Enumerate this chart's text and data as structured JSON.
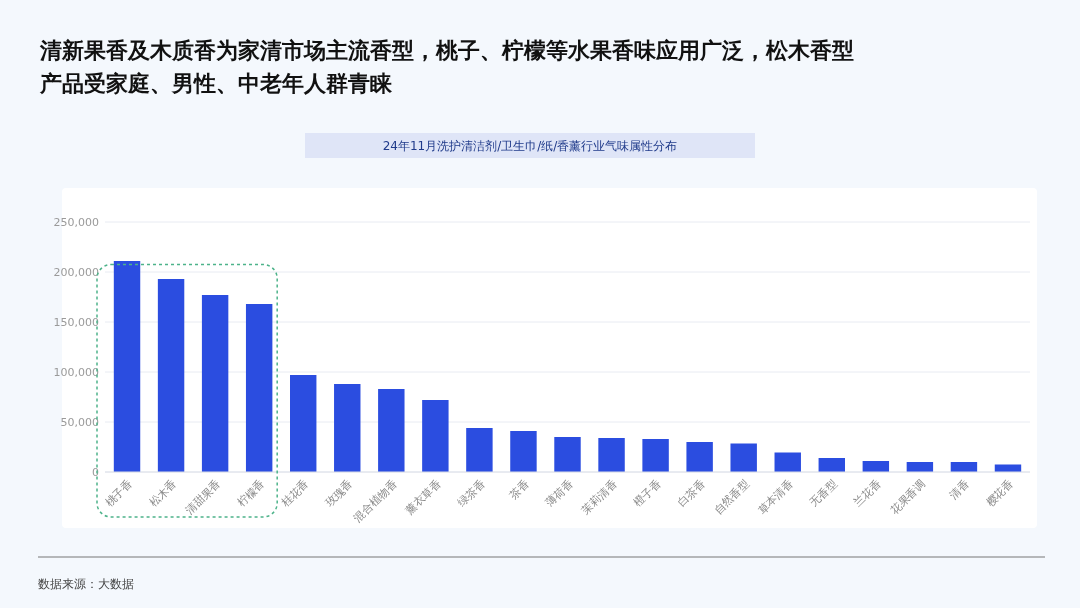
{
  "chart_data": {
    "type": "bar",
    "title": "清新果香及木质香为家清市场主流香型，桃子、柠檬等水果香味应用广泛，松木香型产品受家庭、男性、中老年人群青睐",
    "subtitle": "24年11月洗护清洁剂/卫生巾/纸/香薰行业气味属性分布",
    "categories": [
      "桃子香",
      "松木香",
      "清甜果香",
      "柠檬香",
      "桂花香",
      "玫瑰香",
      "混合植物香",
      "薰衣草香",
      "绿茶香",
      "茶香",
      "薄荷香",
      "茉莉清香",
      "橙子香",
      "白茶香",
      "自然香型",
      "草本清香",
      "无香型",
      "兰花香",
      "花果香调",
      "清香",
      "樱花香"
    ],
    "values": [
      211000,
      193000,
      177000,
      168000,
      97000,
      88000,
      83000,
      72000,
      44000,
      41000,
      35000,
      34000,
      33000,
      30000,
      28500,
      19500,
      14000,
      11000,
      10000,
      10000,
      7500
    ],
    "color": "#2b4de0",
    "ylim": [
      0,
      250000
    ],
    "yticks": [
      0,
      {
        "value": 50000,
        "label": "50,000"
      },
      {
        "value": 100000,
        "label": "100,000"
      },
      {
        "value": 150000,
        "label": "150,000"
      },
      {
        "value": 200000,
        "label": "200,000"
      },
      {
        "value": 250000,
        "label": "250,000"
      }
    ],
    "grid": "y",
    "annotations": [
      "数据来源：大数据"
    ]
  }
}
